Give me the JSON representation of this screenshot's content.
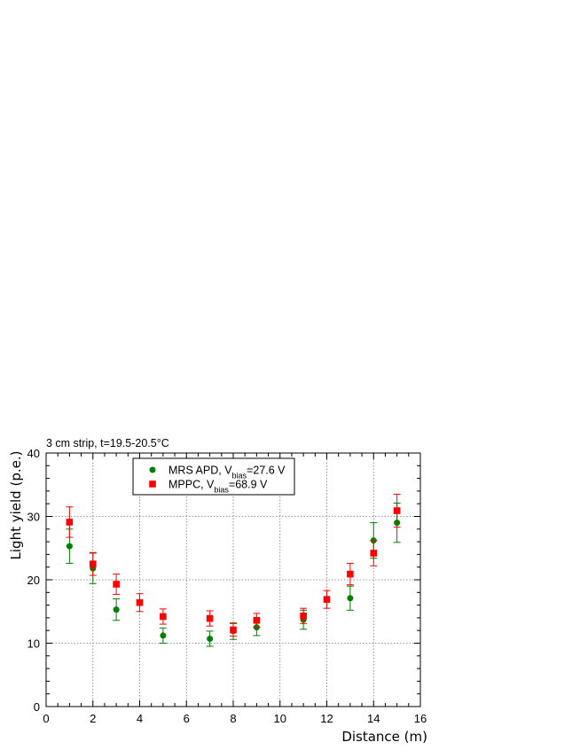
{
  "chart_data": {
    "type": "scatter",
    "annotation": "3 cm strip, t=19.5-20.5°C",
    "xlabel": "Distance (m)",
    "ylabel": "Light yield (p.e.)",
    "xlim": [
      0,
      16
    ],
    "ylim": [
      0,
      40
    ],
    "xticks": [
      0,
      2,
      4,
      6,
      8,
      10,
      12,
      14,
      16
    ],
    "yticks": [
      0,
      10,
      20,
      30,
      40
    ],
    "grid": true,
    "legend_position": "top-center",
    "series": [
      {
        "name": "MRS APD, V",
        "name_sub": "bias",
        "name_suffix": "=27.6 V",
        "marker": "circle",
        "color": "#008000",
        "points": [
          {
            "x": 1,
            "y": 25.3,
            "err": 2.7
          },
          {
            "x": 2,
            "y": 21.8,
            "err": 2.4
          },
          {
            "x": 3,
            "y": 15.3,
            "err": 1.7
          },
          {
            "x": 5,
            "y": 11.2,
            "err": 1.2
          },
          {
            "x": 7,
            "y": 10.7,
            "err": 1.2
          },
          {
            "x": 8,
            "y": 11.9,
            "err": 1.3
          },
          {
            "x": 9,
            "y": 12.5,
            "err": 1.3
          },
          {
            "x": 11,
            "y": 13.7,
            "err": 1.5
          },
          {
            "x": 13,
            "y": 17.1,
            "err": 1.9
          },
          {
            "x": 14,
            "y": 26.2,
            "err": 2.8
          },
          {
            "x": 15,
            "y": 29.0,
            "err": 3.1
          }
        ]
      },
      {
        "name": "MPPC, V",
        "name_sub": "bias",
        "name_suffix": "=68.9 V",
        "marker": "square",
        "color": "#ff0000",
        "points": [
          {
            "x": 1,
            "y": 29.1,
            "err": 2.4
          },
          {
            "x": 2,
            "y": 22.5,
            "err": 1.8
          },
          {
            "x": 3,
            "y": 19.3,
            "err": 1.6
          },
          {
            "x": 4,
            "y": 16.4,
            "err": 1.4
          },
          {
            "x": 5,
            "y": 14.2,
            "err": 1.2
          },
          {
            "x": 7,
            "y": 13.9,
            "err": 1.2
          },
          {
            "x": 8,
            "y": 12.1,
            "err": 1.0
          },
          {
            "x": 9,
            "y": 13.6,
            "err": 1.1
          },
          {
            "x": 11,
            "y": 14.3,
            "err": 1.2
          },
          {
            "x": 12,
            "y": 16.9,
            "err": 1.4
          },
          {
            "x": 13,
            "y": 20.9,
            "err": 1.7
          },
          {
            "x": 14,
            "y": 24.2,
            "err": 2.0
          },
          {
            "x": 15,
            "y": 30.9,
            "err": 2.6
          }
        ]
      }
    ]
  }
}
